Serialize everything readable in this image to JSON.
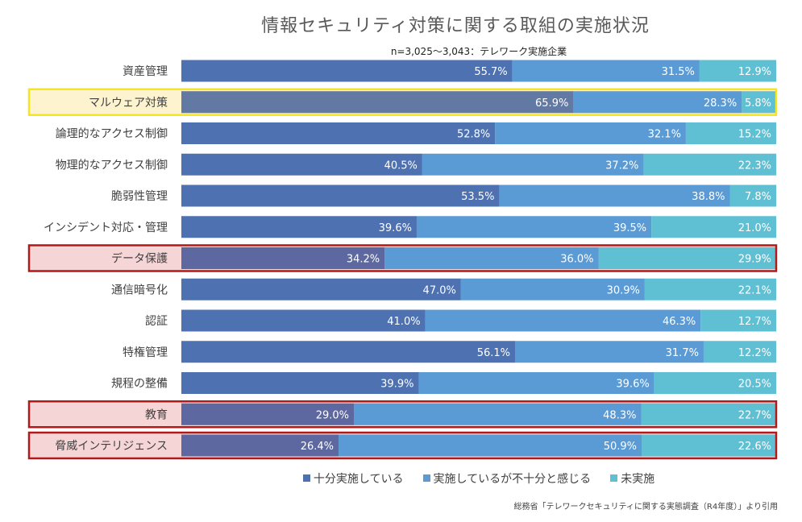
{
  "title": "情報セキュリティ対策に関する取組の実施状況",
  "subtitle": "n=3,025～3,043：テレワーク実施企業",
  "source": "総務省「テレワークセキュリティに関する実態調査（R4年度）」より引用",
  "colors": {
    "series": [
      "#4e71b1",
      "#5b9bd5",
      "#5fbfd3"
    ],
    "highlight_yellow_border": "#f5e71e",
    "highlight_yellow_fill": "#fdf3cf",
    "highlight_red_border": "#b01a1a",
    "highlight_red_fill": "#f6d5d7"
  },
  "chart_data": {
    "type": "bar",
    "orientation": "horizontal",
    "stacked": true,
    "percent": true,
    "xlim": [
      0,
      100
    ],
    "categories": [
      "資産管理",
      "マルウェア対策",
      "論理的なアクセス制御",
      "物理的なアクセス制御",
      "脆弱性管理",
      "インシデント対応・管理",
      "データ保護",
      "通信暗号化",
      "認証",
      "特権管理",
      "規程の整備",
      "教育",
      "脅威インテリジェンス"
    ],
    "series": [
      {
        "name": "十分実施している",
        "values": [
          55.7,
          65.9,
          52.8,
          40.5,
          53.5,
          39.6,
          34.2,
          47.0,
          41.0,
          56.1,
          39.9,
          29.0,
          26.4
        ]
      },
      {
        "name": "実施しているが不十分と感じる",
        "values": [
          31.5,
          28.3,
          32.1,
          37.2,
          38.8,
          39.5,
          36.0,
          30.9,
          46.3,
          31.7,
          39.6,
          48.3,
          50.9
        ]
      },
      {
        "name": "未実施",
        "values": [
          12.9,
          5.8,
          15.2,
          22.3,
          7.8,
          21.0,
          29.9,
          22.1,
          12.7,
          12.2,
          20.5,
          22.7,
          22.6
        ]
      }
    ],
    "highlights": {
      "yellow": [
        "マルウェア対策"
      ],
      "red": [
        "データ保護",
        "教育",
        "脅威インテリジェンス"
      ]
    },
    "legend_position": "bottom",
    "grid": false
  }
}
